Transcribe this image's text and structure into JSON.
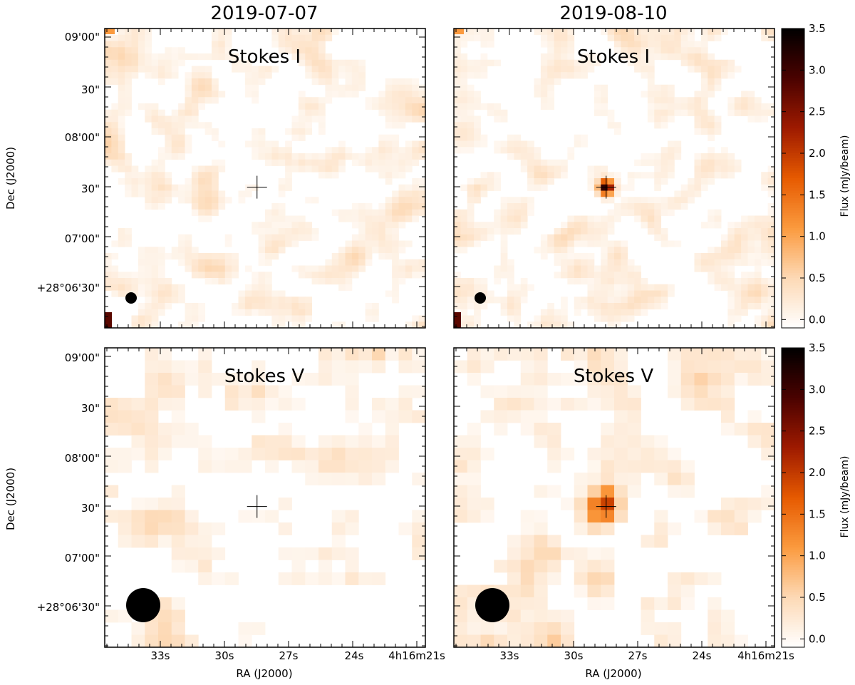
{
  "chart_data": {
    "type": "heatmap",
    "columns": [
      "2019-07-07",
      "2019-08-10"
    ],
    "panels": [
      {
        "row": 0,
        "col": 0,
        "label": "Stokes I",
        "date": "2019-07-07",
        "source_peak_mJy": 0.2
      },
      {
        "row": 0,
        "col": 1,
        "label": "Stokes I",
        "date": "2019-08-10",
        "source_peak_mJy": 3.2
      },
      {
        "row": 1,
        "col": 0,
        "label": "Stokes V",
        "date": "2019-07-07",
        "source_peak_mJy": 0.1
      },
      {
        "row": 1,
        "col": 1,
        "label": "Stokes V",
        "date": "2019-08-10",
        "source_peak_mJy": 1.9
      }
    ],
    "xlabel": "RA (J2000)",
    "ylabel": "Dec (J2000)",
    "x_ticks": [
      "33s",
      "30s",
      "27s",
      "24s",
      "4h16m21s"
    ],
    "y_ticks": [
      "+28°06'30\"",
      "07'00\"",
      "30\"",
      "08'00\"",
      "30\"",
      "09'00\""
    ],
    "colorbar": {
      "label": "Flux (mJy/beam)",
      "range": [
        -0.1,
        3.5
      ],
      "ticks": [
        "0.0",
        "0.5",
        "1.0",
        "1.5",
        "2.0",
        "2.5",
        "3.0",
        "3.5"
      ],
      "colormap": [
        "#ffffff",
        "#fdd9b5",
        "#fb9a3e",
        "#e65a00",
        "#9e1a00",
        "#4a0200",
        "#000000"
      ]
    },
    "beam": {
      "stokes_i": "small",
      "stokes_v": "large"
    },
    "marker": "cross at target position"
  }
}
